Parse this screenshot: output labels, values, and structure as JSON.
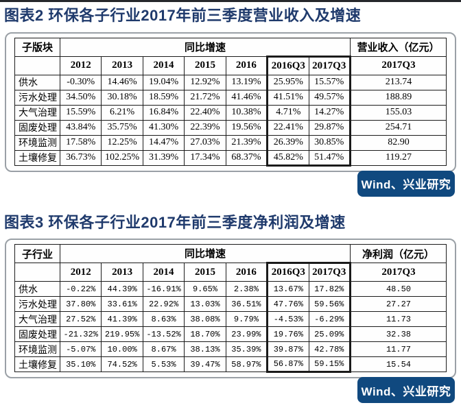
{
  "colors": {
    "title_blue": "#1f3a6c",
    "source_bg": "#10497f",
    "source_text": "#ffffff"
  },
  "figure2": {
    "title": "图表2 环保各子行业2017年前三季度营业收入及增速",
    "source": "Wind、兴业研究",
    "table": {
      "corner_label": "子版块",
      "group_label": "同比增速",
      "value_label": "营业收入（亿元）",
      "year_columns": [
        "2012",
        "2013",
        "2014",
        "2015",
        "2016",
        "2016Q3",
        "2017Q3"
      ],
      "value_column": "2017Q3",
      "highlight_columns": [
        "2016Q3",
        "2017Q3"
      ],
      "rows": [
        {
          "label": "供水",
          "growth": [
            "-0.30%",
            "14.46%",
            "19.04%",
            "12.92%",
            "13.19%",
            "25.95%",
            "15.57%"
          ],
          "value": "213.74"
        },
        {
          "label": "污水处理",
          "growth": [
            "34.50%",
            "30.18%",
            "18.59%",
            "21.72%",
            "41.46%",
            "41.51%",
            "49.57%"
          ],
          "value": "188.89"
        },
        {
          "label": "大气治理",
          "growth": [
            "15.59%",
            "6.21%",
            "16.84%",
            "22.40%",
            "10.38%",
            "4.71%",
            "14.27%"
          ],
          "value": "155.03"
        },
        {
          "label": "固废处理",
          "growth": [
            "43.84%",
            "35.75%",
            "41.30%",
            "22.39%",
            "19.56%",
            "22.41%",
            "29.87%"
          ],
          "value": "254.71"
        },
        {
          "label": "环境监测",
          "growth": [
            "17.58%",
            "12.25%",
            "14.47%",
            "27.03%",
            "21.39%",
            "26.39%",
            "30.85%"
          ],
          "value": "82.90"
        },
        {
          "label": "土壤修复",
          "growth": [
            "36.73%",
            "102.25%",
            "31.39%",
            "17.34%",
            "68.37%",
            "45.82%",
            "51.47%"
          ],
          "value": "119.27"
        }
      ]
    }
  },
  "figure3": {
    "title": "图表3 环保各子行业2017年前三季度净利润及增速",
    "source": "Wind、兴业研究",
    "table": {
      "corner_label": "子行业",
      "group_label": "同比增速",
      "value_label": "净利润（亿元）",
      "year_columns": [
        "2012",
        "2013",
        "2014",
        "2015",
        "2016",
        "2016Q3",
        "2017Q3"
      ],
      "value_column": "2017Q3",
      "highlight_columns": [
        "2016Q3",
        "2017Q3"
      ],
      "rows": [
        {
          "label": "供水",
          "growth": [
            "-0.22%",
            "44.39%",
            "-16.91%",
            "9.65%",
            "2.38%",
            "13.67%",
            "17.82%"
          ],
          "value": "48.50"
        },
        {
          "label": "污水处理",
          "growth": [
            "37.80%",
            "33.61%",
            "22.92%",
            "13.03%",
            "36.51%",
            "47.76%",
            "59.56%"
          ],
          "value": "27.27"
        },
        {
          "label": "大气治理",
          "growth": [
            "27.52%",
            "41.39%",
            "8.63%",
            "38.08%",
            "9.79%",
            "-4.53%",
            "-6.29%"
          ],
          "value": "11.73"
        },
        {
          "label": "固废处理",
          "growth": [
            "-21.32%",
            "219.95%",
            "-13.52%",
            "18.70%",
            "23.99%",
            "19.76%",
            "25.09%"
          ],
          "value": "32.38"
        },
        {
          "label": "环境监测",
          "growth": [
            "-5.07%",
            "10.00%",
            "8.67%",
            "38.13%",
            "35.39%",
            "39.87%",
            "42.78%"
          ],
          "value": "11.77"
        },
        {
          "label": "土壤修复",
          "growth": [
            "35.10%",
            "74.52%",
            "5.53%",
            "39.47%",
            "58.97%",
            "56.87%",
            "59.15%"
          ],
          "value": "15.54"
        }
      ]
    }
  }
}
